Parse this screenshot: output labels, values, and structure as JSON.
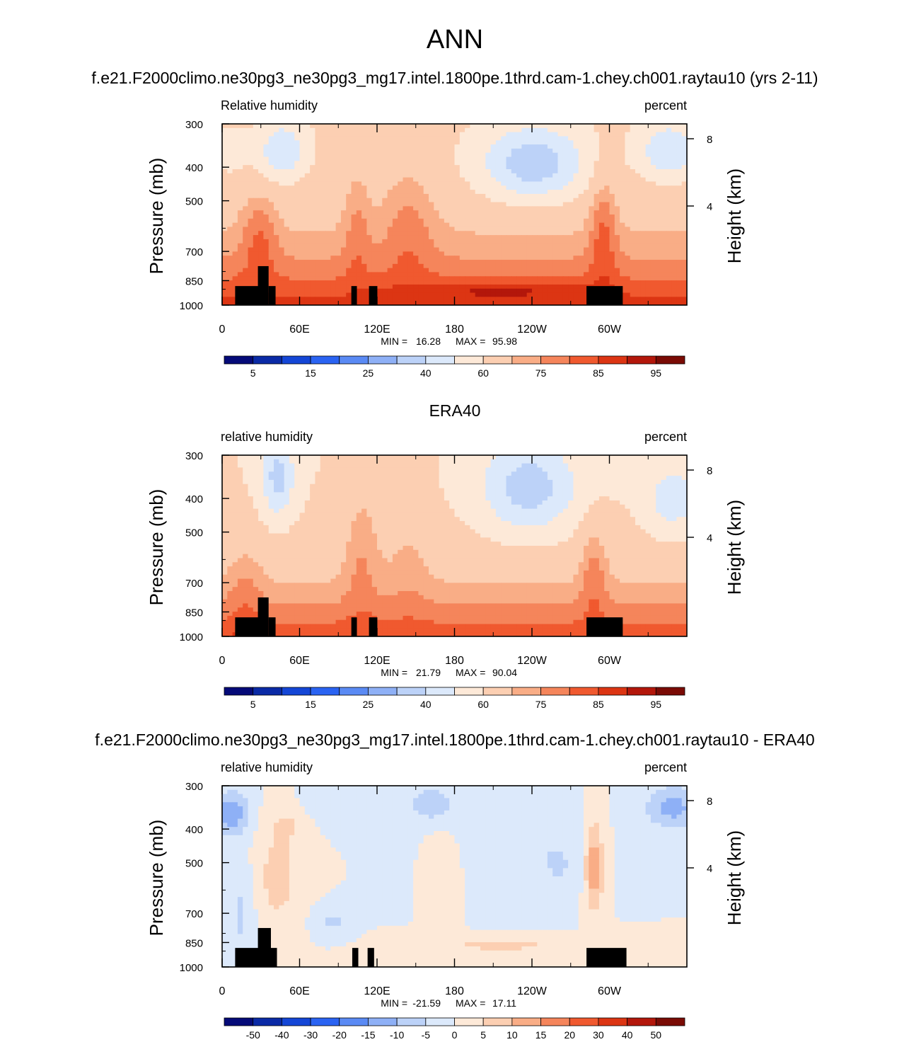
{
  "figure": {
    "title": "ANN"
  },
  "chart_data": [
    {
      "type": "heatmap",
      "title": "f.e21.F2000climo.ne30pg3_ne30pg3_mg17.intel.1800pe.1thrd.cam-1.chey.ch001.raytau10 (yrs 2-11)",
      "variable_label": "Relative humidity",
      "units_label": "percent",
      "ylabel": "Pressure (mb)",
      "right_ylabel": "Height (km)",
      "x_ticks": [
        "0",
        "60E",
        "120E",
        "180",
        "120W",
        "60W"
      ],
      "x_range": [
        0,
        360
      ],
      "y_ticks": [
        "300",
        "400",
        "500",
        "700",
        "850",
        "1000"
      ],
      "y_range": [
        300,
        1000
      ],
      "y_scale": "log",
      "right_y_ticks": [
        "8",
        "4"
      ],
      "stats": {
        "min_label": "MIN =",
        "min": "16.28",
        "max_label": "MAX =",
        "max": "95.98"
      },
      "colorbar_labels": [
        "5",
        "15",
        "25",
        "40",
        "60",
        "75",
        "85",
        "95"
      ],
      "colorbar_colors": [
        "#050a78",
        "#0a2aa6",
        "#1446d6",
        "#2a63f2",
        "#5a8af4",
        "#8eb0f6",
        "#bcd2f8",
        "#dce9fb",
        "#fde9d8",
        "#fccfb2",
        "#f9ad86",
        "#f5855b",
        "#f0592f",
        "#dc3513",
        "#b3170b",
        "#7a0b05"
      ]
    },
    {
      "type": "heatmap",
      "title": "ERA40",
      "variable_label": "relative humidity",
      "units_label": "percent",
      "ylabel": "Pressure (mb)",
      "right_ylabel": "Height (km)",
      "x_ticks": [
        "0",
        "60E",
        "120E",
        "180",
        "120W",
        "60W"
      ],
      "x_range": [
        0,
        360
      ],
      "y_ticks": [
        "300",
        "400",
        "500",
        "700",
        "850",
        "1000"
      ],
      "y_range": [
        300,
        1000
      ],
      "y_scale": "log",
      "right_y_ticks": [
        "8",
        "4"
      ],
      "stats": {
        "min_label": "MIN =",
        "min": "21.79",
        "max_label": "MAX =",
        "max": "90.04"
      },
      "colorbar_labels": [
        "5",
        "15",
        "25",
        "40",
        "60",
        "75",
        "85",
        "95"
      ],
      "colorbar_colors": [
        "#050a78",
        "#0a2aa6",
        "#1446d6",
        "#2a63f2",
        "#5a8af4",
        "#8eb0f6",
        "#bcd2f8",
        "#dce9fb",
        "#fde9d8",
        "#fccfb2",
        "#f9ad86",
        "#f5855b",
        "#f0592f",
        "#dc3513",
        "#b3170b",
        "#7a0b05"
      ]
    },
    {
      "type": "heatmap",
      "title": "f.e21.F2000climo.ne30pg3_ne30pg3_mg17.intel.1800pe.1thrd.cam-1.chey.ch001.raytau10 - ERA40",
      "variable_label": "relative humidity",
      "units_label": "percent",
      "ylabel": "Pressure (mb)",
      "right_ylabel": "Height (km)",
      "x_ticks": [
        "0",
        "60E",
        "120E",
        "180",
        "120W",
        "60W"
      ],
      "x_range": [
        0,
        360
      ],
      "y_ticks": [
        "300",
        "400",
        "500",
        "700",
        "850",
        "1000"
      ],
      "y_range": [
        300,
        1000
      ],
      "y_scale": "log",
      "right_y_ticks": [
        "8",
        "4"
      ],
      "stats": {
        "min_label": "MIN =",
        "min": "-21.59",
        "max_label": "MAX =",
        "max": "17.11"
      },
      "colorbar_labels": [
        "-50",
        "-40",
        "-30",
        "-20",
        "-15",
        "-10",
        "-5",
        "0",
        "5",
        "10",
        "15",
        "20",
        "30",
        "40",
        "50"
      ],
      "colorbar_colors": [
        "#050a78",
        "#0a2aa6",
        "#1446d6",
        "#2a63f2",
        "#5a8af4",
        "#8eb0f6",
        "#bcd2f8",
        "#dce9fb",
        "#fde9d8",
        "#fccfb2",
        "#f9ad86",
        "#f5855b",
        "#f0592f",
        "#dc3513",
        "#b3170b",
        "#7a0b05"
      ]
    }
  ]
}
